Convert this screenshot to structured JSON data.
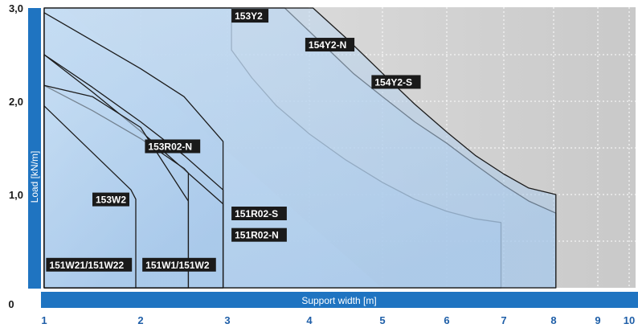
{
  "chart_data": {
    "type": "area",
    "title": "",
    "xlabel": "Support width [m]",
    "ylabel": "Load [kN/m]",
    "x_ticks": [
      "1",
      "2",
      "3",
      "4",
      "5",
      "6",
      "7",
      "8",
      "9",
      "10"
    ],
    "y_ticks": [
      {
        "value": 0,
        "label": "0"
      },
      {
        "value": 1,
        "label": "1,0"
      },
      {
        "value": 2,
        "label": "2,0"
      },
      {
        "value": 3,
        "label": "3,0"
      }
    ],
    "xlim": [
      1,
      10
    ],
    "ylim": [
      0,
      3
    ],
    "grid": true,
    "colors": {
      "axis_band": "#1f74c1",
      "area_fill": "#b5d1ef",
      "area_fill_light": "#e6f0fa",
      "area_stroke": "#1c1c1c",
      "plot_bg": "#d9d9d9",
      "label_bg": "#1a1a1a",
      "label_fg": "#ffffff"
    },
    "series": [
      {
        "name": "153Y2",
        "points": [
          [
            1.0,
            3.0
          ],
          [
            3.05,
            3.0
          ],
          [
            3.05,
            2.55
          ],
          [
            3.3,
            2.25
          ],
          [
            3.6,
            1.95
          ],
          [
            4.0,
            1.65
          ],
          [
            4.5,
            1.37
          ],
          [
            5.0,
            1.13
          ],
          [
            5.5,
            0.95
          ],
          [
            6.0,
            0.82
          ],
          [
            6.5,
            0.74
          ],
          [
            6.95,
            0.7
          ],
          [
            6.95,
            0.0
          ]
        ]
      },
      {
        "name": "154Y2-N",
        "points": [
          [
            1.0,
            3.0
          ],
          [
            3.7,
            3.0
          ],
          [
            4.2,
            2.6
          ],
          [
            4.6,
            2.3
          ],
          [
            5.0,
            2.05
          ],
          [
            5.5,
            1.78
          ],
          [
            6.0,
            1.55
          ],
          [
            6.5,
            1.32
          ],
          [
            7.0,
            1.1
          ],
          [
            7.5,
            0.93
          ],
          [
            8.05,
            0.8
          ],
          [
            8.05,
            0.0
          ]
        ]
      },
      {
        "name": "154Y2-S",
        "points": [
          [
            1.0,
            3.0
          ],
          [
            4.05,
            3.0
          ],
          [
            4.5,
            2.68
          ],
          [
            5.0,
            2.3
          ],
          [
            5.5,
            1.97
          ],
          [
            6.0,
            1.67
          ],
          [
            6.5,
            1.42
          ],
          [
            7.0,
            1.22
          ],
          [
            7.5,
            1.07
          ],
          [
            8.05,
            1.0
          ],
          [
            8.05,
            0.0
          ]
        ]
      },
      {
        "name": "153R02-N",
        "points": [
          [
            1.0,
            2.95
          ],
          [
            1.5,
            2.65
          ],
          [
            2.0,
            2.35
          ],
          [
            2.5,
            2.05
          ],
          [
            2.95,
            1.57
          ],
          [
            2.95,
            0.0
          ]
        ]
      },
      {
        "name": "151R02-S",
        "points": [
          [
            1.0,
            2.5
          ],
          [
            1.5,
            2.15
          ],
          [
            2.0,
            1.78
          ],
          [
            2.5,
            1.42
          ],
          [
            2.95,
            1.05
          ],
          [
            2.95,
            0.0
          ]
        ]
      },
      {
        "name": "151R02-N",
        "points": [
          [
            1.0,
            2.5
          ],
          [
            1.5,
            2.1
          ],
          [
            2.0,
            1.68
          ],
          [
            2.5,
            1.27
          ],
          [
            2.95,
            0.9
          ],
          [
            2.95,
            0.0
          ]
        ]
      },
      {
        "name": "153W2",
        "points": [
          [
            1.0,
            2.17
          ],
          [
            1.5,
            1.9
          ],
          [
            2.0,
            1.6
          ],
          [
            2.5,
            1.28
          ],
          [
            2.55,
            1.23
          ],
          [
            2.55,
            0.0
          ]
        ]
      },
      {
        "name": "151W1/151W2",
        "points": [
          [
            1.0,
            2.17
          ],
          [
            1.5,
            2.05
          ],
          [
            2.0,
            1.72
          ],
          [
            2.5,
            1.0
          ],
          [
            2.55,
            0.93
          ],
          [
            2.55,
            0.0
          ]
        ]
      },
      {
        "name": "151W21/151W22",
        "points": [
          [
            1.0,
            1.95
          ],
          [
            1.5,
            1.45
          ],
          [
            1.9,
            1.05
          ],
          [
            1.95,
            0.95
          ],
          [
            1.95,
            0.0
          ]
        ]
      }
    ],
    "labels": [
      {
        "text": "153Y2",
        "x": 3.05,
        "y": 2.87
      },
      {
        "text": "154Y2-N",
        "x": 3.95,
        "y": 2.56
      },
      {
        "text": "154Y2-S",
        "x": 4.85,
        "y": 2.16
      },
      {
        "text": "153R02-N",
        "x": 2.05,
        "y": 1.47
      },
      {
        "text": "153W2",
        "x": 1.5,
        "y": 0.9
      },
      {
        "text": "151R02-S",
        "x": 3.05,
        "y": 0.75
      },
      {
        "text": "151R02-N",
        "x": 3.05,
        "y": 0.52
      },
      {
        "text": "151W21/151W22",
        "x": 1.02,
        "y": 0.2
      },
      {
        "text": "151W1/151W2",
        "x": 2.02,
        "y": 0.2
      }
    ]
  }
}
